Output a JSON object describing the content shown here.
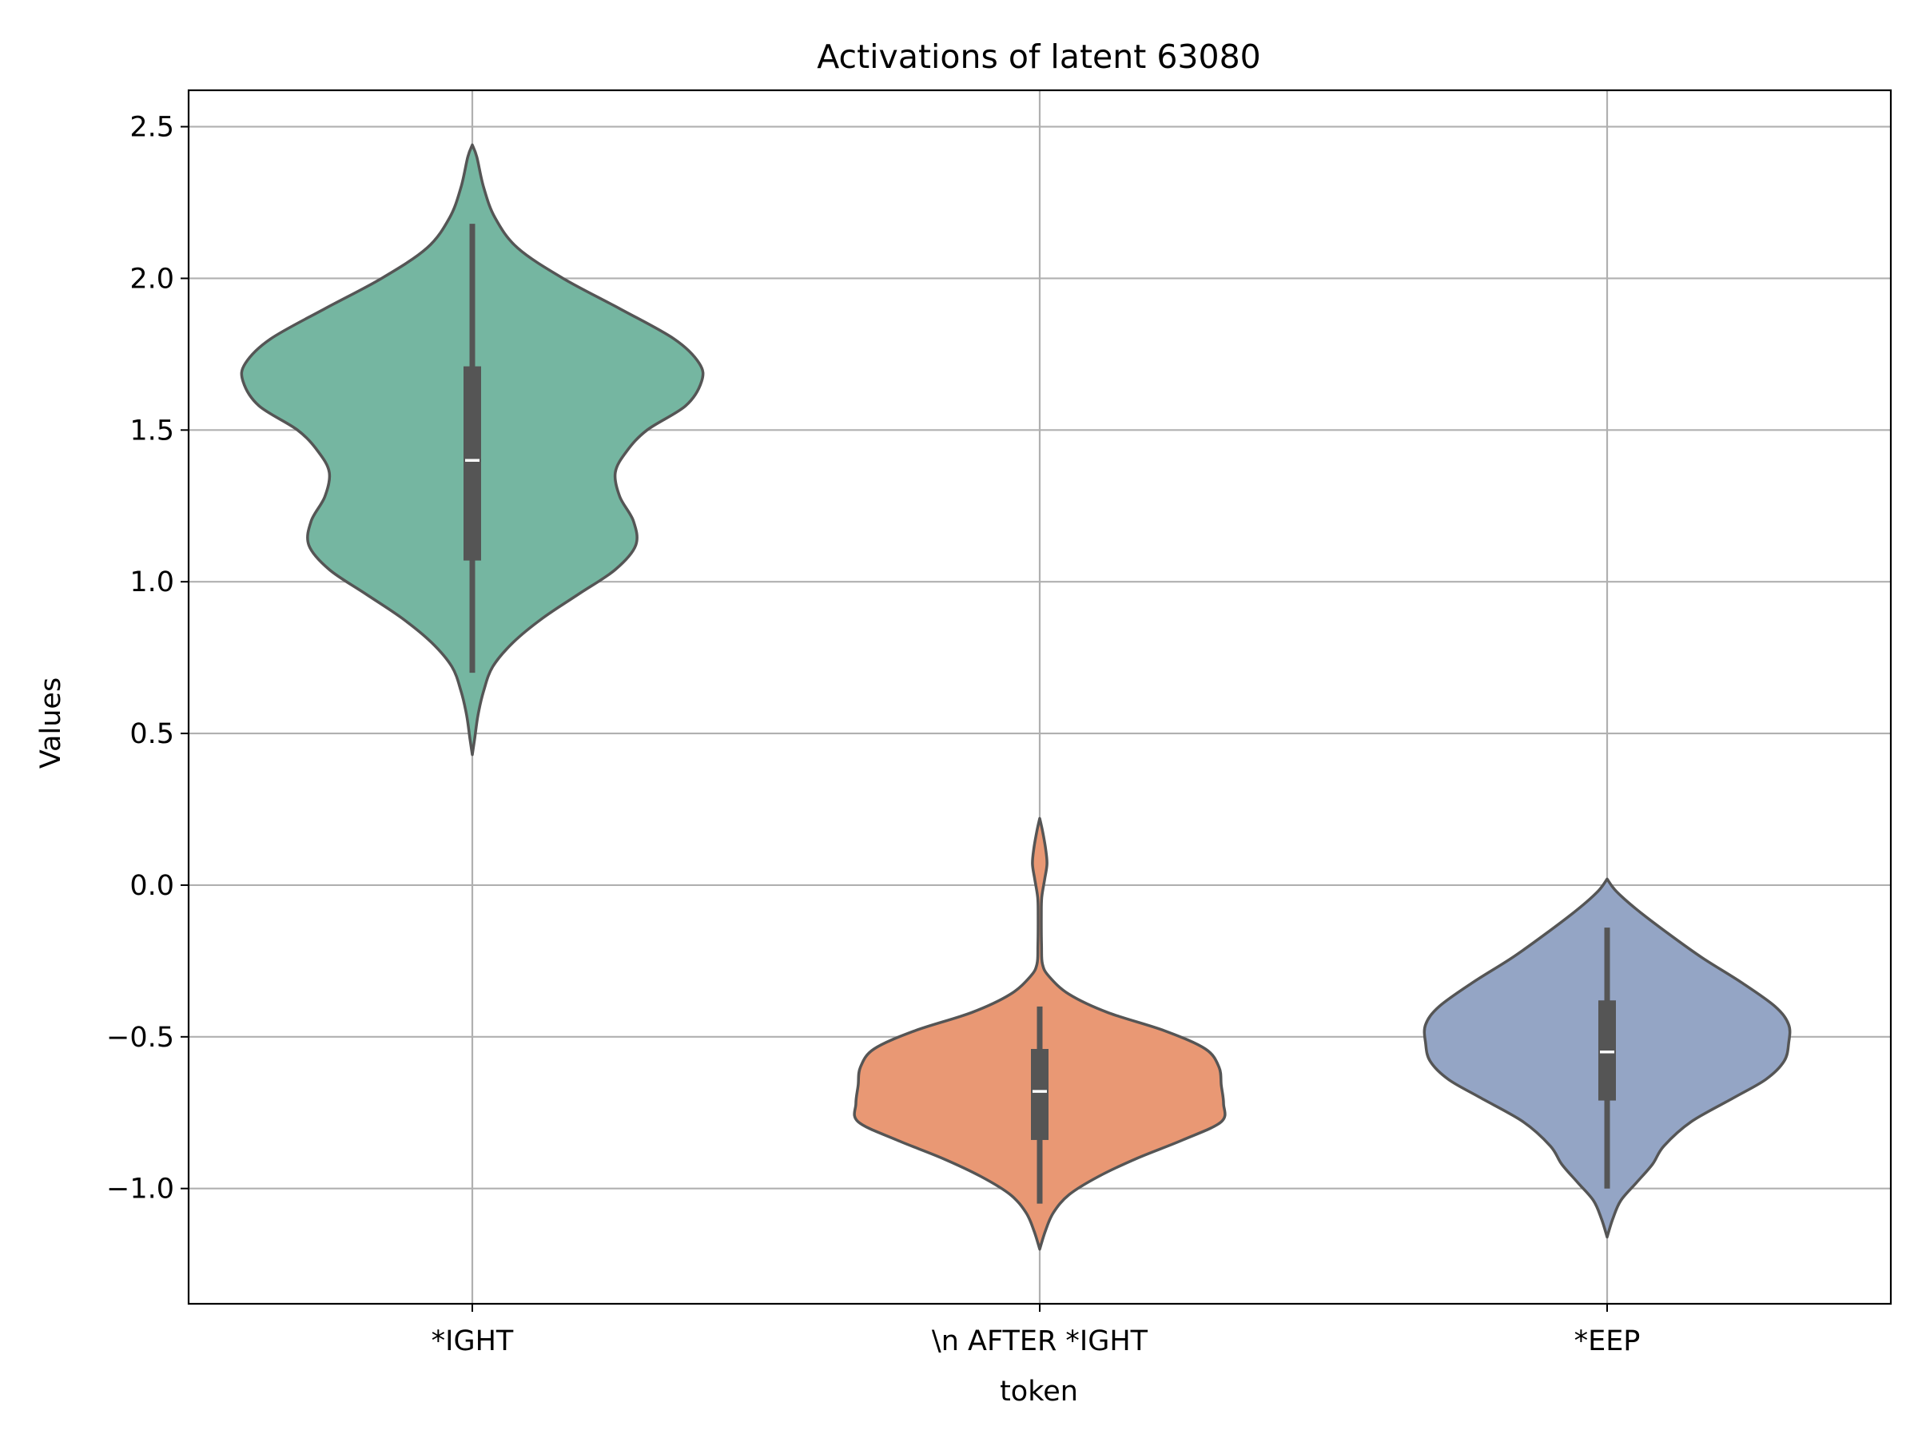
{
  "chart_data": {
    "type": "violin",
    "title": "Activations of latent 63080",
    "xlabel": "token",
    "ylabel": "Values",
    "ylim": [
      -1.38,
      2.62
    ],
    "grid": true,
    "yticks": [
      {
        "value": 2.5,
        "label": "2.5"
      },
      {
        "value": 2.0,
        "label": "2.0"
      },
      {
        "value": 1.5,
        "label": "1.5"
      },
      {
        "value": 1.0,
        "label": "1.0"
      },
      {
        "value": 0.5,
        "label": "0.5"
      },
      {
        "value": 0.0,
        "label": "0.0"
      },
      {
        "value": -0.5,
        "label": "−0.5"
      },
      {
        "value": -1.0,
        "label": "−1.0"
      }
    ],
    "categories": [
      "*IGHT",
      "\\n AFTER *IGHT",
      "*EEP"
    ],
    "colors": [
      "#75b6a1",
      "#e99874",
      "#94a5c5"
    ],
    "edge_color": "#555555",
    "violins": [
      {
        "category": "*IGHT",
        "min": 0.7,
        "q1": 1.07,
        "median": 1.4,
        "q3": 1.71,
        "max": 2.18,
        "density": [
          [
            2.44,
            0.0
          ],
          [
            2.4,
            0.02
          ],
          [
            2.3,
            0.05
          ],
          [
            2.2,
            0.1
          ],
          [
            2.1,
            0.2
          ],
          [
            2.0,
            0.4
          ],
          [
            1.9,
            0.65
          ],
          [
            1.8,
            0.89
          ],
          [
            1.72,
            1.0
          ],
          [
            1.66,
            1.01
          ],
          [
            1.58,
            0.94
          ],
          [
            1.5,
            0.77
          ],
          [
            1.43,
            0.68
          ],
          [
            1.36,
            0.63
          ],
          [
            1.28,
            0.65
          ],
          [
            1.2,
            0.71
          ],
          [
            1.12,
            0.72
          ],
          [
            1.04,
            0.63
          ],
          [
            0.96,
            0.47
          ],
          [
            0.88,
            0.31
          ],
          [
            0.8,
            0.18
          ],
          [
            0.72,
            0.09
          ],
          [
            0.64,
            0.05
          ],
          [
            0.56,
            0.025
          ],
          [
            0.48,
            0.01
          ],
          [
            0.43,
            0.0
          ]
        ]
      },
      {
        "category": "\\n AFTER *IGHT",
        "min": -1.05,
        "q1": -0.84,
        "median": -0.68,
        "q3": -0.54,
        "max": -0.4,
        "density": [
          [
            0.22,
            0.0
          ],
          [
            0.18,
            0.012
          ],
          [
            0.12,
            0.026
          ],
          [
            0.07,
            0.032
          ],
          [
            0.02,
            0.022
          ],
          [
            -0.04,
            0.009
          ],
          [
            -0.1,
            0.007
          ],
          [
            -0.2,
            0.008
          ],
          [
            -0.26,
            0.012
          ],
          [
            -0.3,
            0.04
          ],
          [
            -0.36,
            0.13
          ],
          [
            -0.42,
            0.3
          ],
          [
            -0.48,
            0.55
          ],
          [
            -0.54,
            0.73
          ],
          [
            -0.6,
            0.79
          ],
          [
            -0.66,
            0.8
          ],
          [
            -0.72,
            0.81
          ],
          [
            -0.78,
            0.8
          ],
          [
            -0.84,
            0.63
          ],
          [
            -0.9,
            0.43
          ],
          [
            -0.96,
            0.26
          ],
          [
            -1.02,
            0.13
          ],
          [
            -1.08,
            0.06
          ],
          [
            -1.14,
            0.025
          ],
          [
            -1.2,
            0.0
          ]
        ]
      },
      {
        "category": "*EEP",
        "min": -1.0,
        "q1": -0.71,
        "median": -0.55,
        "q3": -0.38,
        "max": -0.14,
        "density": [
          [
            0.02,
            0.0
          ],
          [
            -0.02,
            0.04
          ],
          [
            -0.08,
            0.13
          ],
          [
            -0.16,
            0.27
          ],
          [
            -0.24,
            0.42
          ],
          [
            -0.32,
            0.59
          ],
          [
            -0.4,
            0.74
          ],
          [
            -0.46,
            0.8
          ],
          [
            -0.52,
            0.8
          ],
          [
            -0.58,
            0.78
          ],
          [
            -0.64,
            0.7
          ],
          [
            -0.7,
            0.56
          ],
          [
            -0.78,
            0.37
          ],
          [
            -0.86,
            0.25
          ],
          [
            -0.92,
            0.2
          ],
          [
            -0.98,
            0.13
          ],
          [
            -1.04,
            0.06
          ],
          [
            -1.1,
            0.025
          ],
          [
            -1.16,
            0.0
          ]
        ]
      }
    ]
  }
}
